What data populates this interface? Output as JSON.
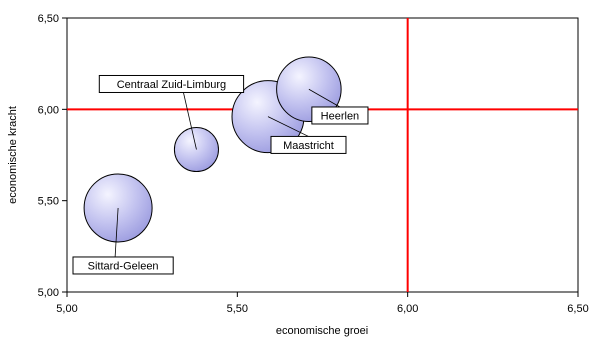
{
  "chart_data": {
    "type": "bubble",
    "xlabel": "economische groei",
    "ylabel": "economische kracht",
    "xlim": [
      5.0,
      6.5
    ],
    "ylim": [
      5.0,
      6.5
    ],
    "x_ticks": [
      "5,00",
      "5,50",
      "6,00",
      "6,50"
    ],
    "y_ticks": [
      "5,00",
      "5,50",
      "6,00",
      "6,50"
    ],
    "reference_lines": {
      "x": 6.0,
      "y": 6.0,
      "color": "#ff0000"
    },
    "bubble_color": "#b8b8ea",
    "points": [
      {
        "label": "Sittard-Geleen",
        "x": 5.15,
        "y": 5.46,
        "size": 1.0,
        "label_position": "below"
      },
      {
        "label": "Centraal Zuid-Limburg",
        "x": 5.38,
        "y": 5.78,
        "size": 0.42,
        "label_position": "upper-left"
      },
      {
        "label": "Maastricht",
        "x": 5.59,
        "y": 5.96,
        "size": 1.12,
        "label_position": "lower-right"
      },
      {
        "label": "Heerlen",
        "x": 5.71,
        "y": 6.11,
        "size": 0.9,
        "label_position": "lower-right"
      }
    ]
  }
}
